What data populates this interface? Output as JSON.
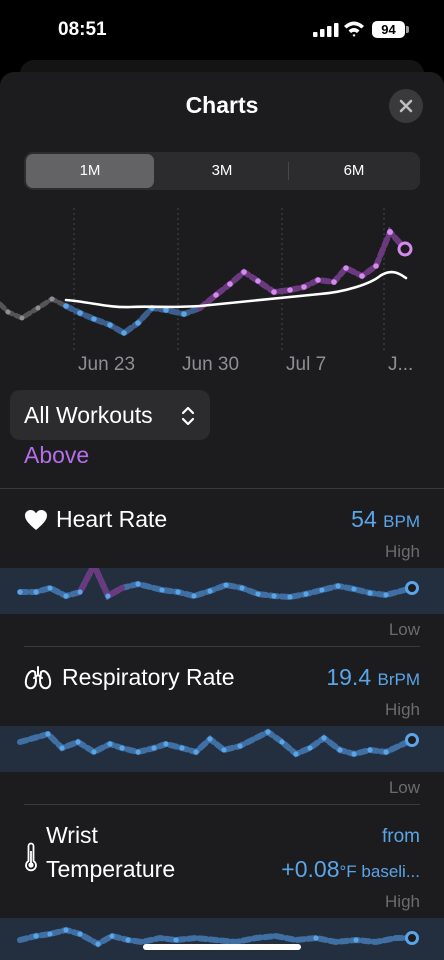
{
  "status": {
    "time": "08:51",
    "battery": "94"
  },
  "sheet": {
    "title": "Charts"
  },
  "segments": [
    "1M",
    "3M",
    "6M"
  ],
  "selected_segment": "1M",
  "main_chart": {
    "x_labels": [
      "Jun 23",
      "Jun 30",
      "Jul 7",
      "J..."
    ],
    "highlight_color": "#b56ee8",
    "baseline_color": "#ffffff",
    "normal_color": "#5aa5e8"
  },
  "filter": {
    "label": "All Workouts",
    "chevron": "up-down-chevron-icon"
  },
  "above_label": "Above",
  "metrics": {
    "heart_rate": {
      "icon": "heart-icon",
      "name": "Heart Rate",
      "value": "54",
      "unit": "BPM",
      "high": "High",
      "low": "Low"
    },
    "respiratory_rate": {
      "icon": "lungs-icon",
      "name": "Respiratory Rate",
      "value": "19.4",
      "unit": "BrPM",
      "high": "High",
      "low": "Low"
    },
    "wrist_temperature": {
      "icon": "thermometer-icon",
      "name_line1": "Wrist",
      "name_line2": "Temperature",
      "value_prefix": "from",
      "value": "+0.08",
      "unit": "°F baseli...",
      "high": "High"
    }
  }
}
